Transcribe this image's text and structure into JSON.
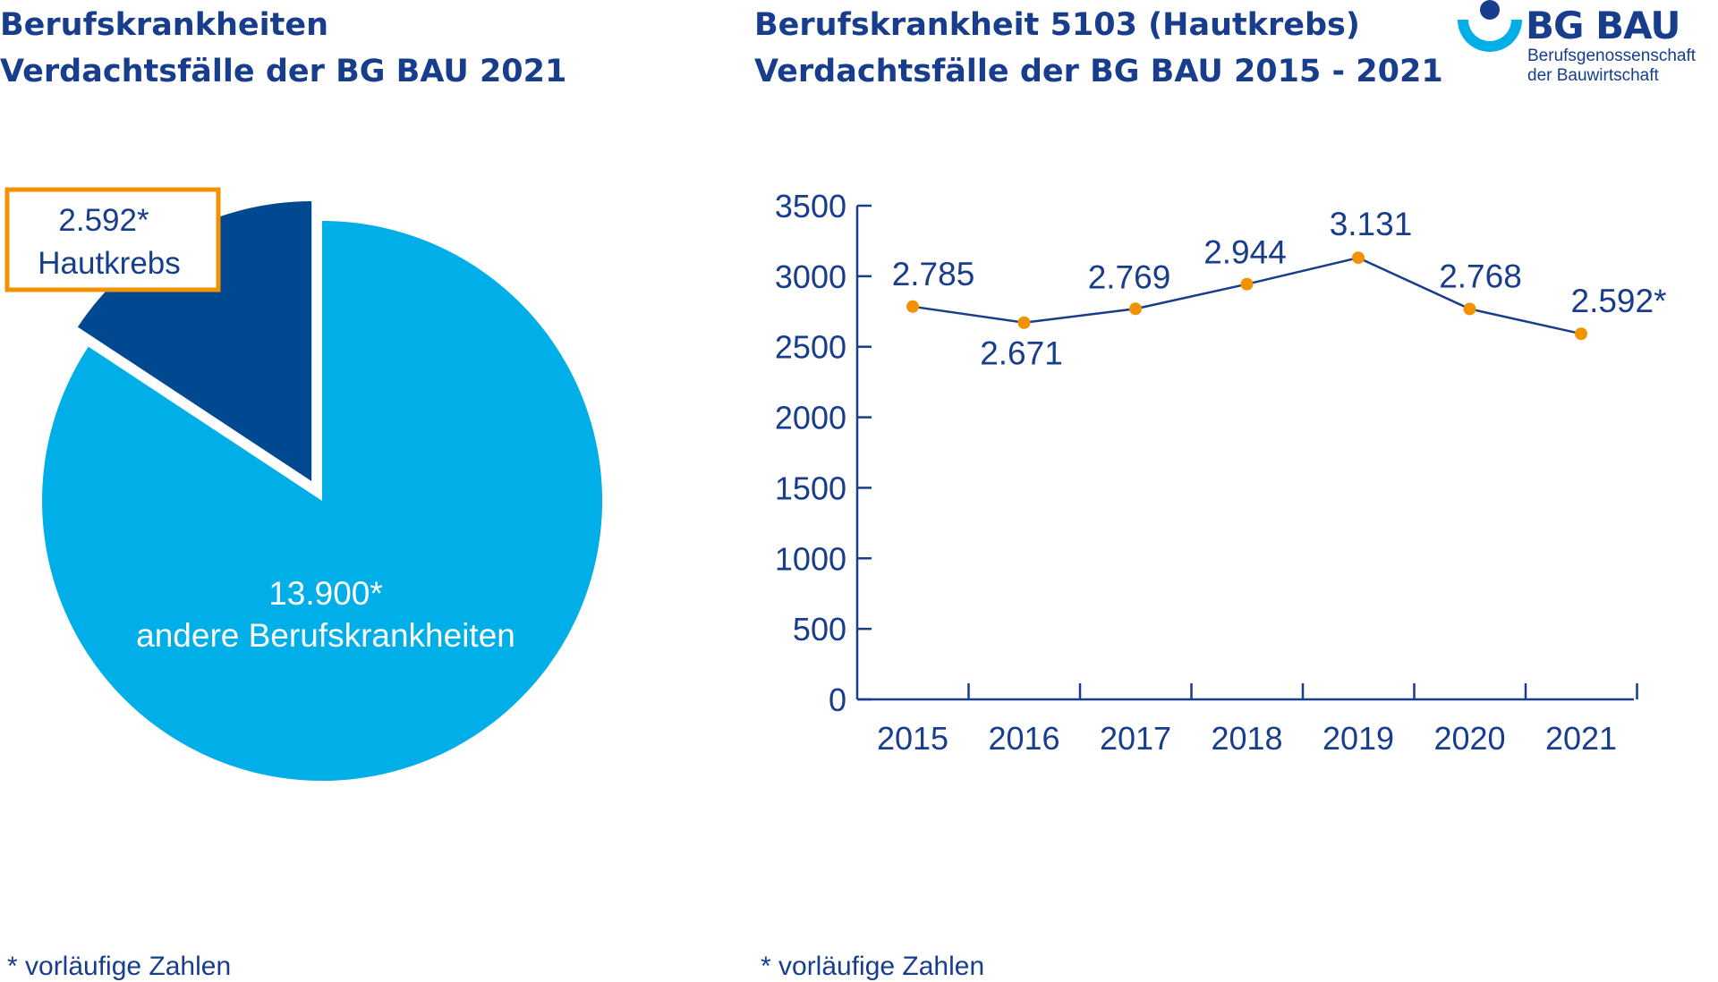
{
  "left_title": {
    "line1": "Berufskrankheiten",
    "line2": "Verdachtsfälle der BG BAU 2021"
  },
  "right_title": {
    "line1": "Berufskrankheit 5103 (Hautkrebs)",
    "line2": "Verdachtsfälle der BG BAU 2015 - 2021"
  },
  "logo": {
    "name": "BG BAU",
    "subtitle_line1": "Berufsgenossenschaft",
    "subtitle_line2": "der Bauwirtschaft"
  },
  "footnote_left": "* vorläufige Zahlen",
  "footnote_right": "* vorläufige Zahlen",
  "colors": {
    "dark_blue": "#004991",
    "light_blue": "#00aee8",
    "text_blue": "#173d8c",
    "orange": "#f39200",
    "axis": "#173d8c"
  },
  "chart_data": [
    {
      "type": "pie",
      "title": "Berufskrankheiten Verdachtsfälle der BG BAU 2021",
      "slices": [
        {
          "name": "Hautkrebs",
          "value": 2592,
          "label_value": "2.592*",
          "label_name": "Hautkrebs",
          "color": "#004991",
          "exploded": true
        },
        {
          "name": "andere Berufskrankheiten",
          "value": 13900,
          "label_value": "13.900*",
          "label_name": "andere Berufskrankheiten",
          "color": "#00aee8",
          "exploded": false
        }
      ]
    },
    {
      "type": "line",
      "title": "Berufskrankheit 5103 (Hautkrebs) Verdachtsfälle der BG BAU 2015 - 2021",
      "categories": [
        "2015",
        "2016",
        "2017",
        "2018",
        "2019",
        "2020",
        "2021"
      ],
      "values": [
        2785,
        2671,
        2769,
        2944,
        3131,
        2768,
        2592
      ],
      "data_labels": [
        "2.785",
        "2.671",
        "2.769",
        "2.944",
        "3.131",
        "2.768",
        "2.592*"
      ],
      "y_ticks": [
        "0",
        "500",
        "1000",
        "1500",
        "2000",
        "2500",
        "3000",
        "3500"
      ],
      "ylim": [
        0,
        3500
      ],
      "xlabel": "",
      "ylabel": "",
      "grid": false
    }
  ]
}
